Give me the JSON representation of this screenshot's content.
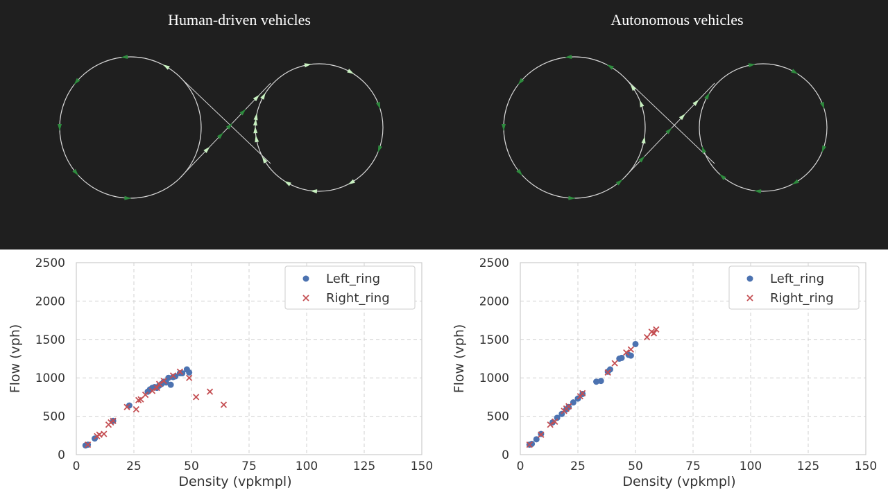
{
  "simulations": [
    {
      "title": "Human-driven vehicles"
    },
    {
      "title": "Autonomous vehicles"
    }
  ],
  "colors": {
    "background_dark": "#1f1f1f",
    "track": "#d9d9d9",
    "vehicle_dark": "#2e8b3e",
    "vehicle_light": "#c8f0c0",
    "left_ring_marker": "#4c72b0",
    "right_ring_marker": "#c44e52",
    "grid": "#d0d0d0"
  },
  "chart_data": [
    {
      "type": "scatter",
      "xlabel": "Density (vpkmpl)",
      "ylabel": "Flow (vph)",
      "xlim": [
        0,
        150
      ],
      "ylim": [
        0,
        2500
      ],
      "xticks": [
        0,
        25,
        50,
        75,
        100,
        125,
        150
      ],
      "yticks": [
        0,
        500,
        1000,
        1500,
        2000,
        2500
      ],
      "grid": true,
      "legend_position": "top-right",
      "series": [
        {
          "name": "Left_ring",
          "marker": "circle",
          "color": "#4c72b0",
          "x": [
            4,
            5,
            8,
            16,
            23,
            31,
            32,
            33,
            34,
            35,
            36,
            37,
            38,
            39,
            40,
            41,
            42,
            43,
            45,
            46,
            48,
            49
          ],
          "y": [
            120,
            130,
            210,
            440,
            640,
            820,
            850,
            870,
            880,
            870,
            900,
            920,
            950,
            940,
            1000,
            910,
            1010,
            1020,
            1060,
            1060,
            1110,
            1070
          ]
        },
        {
          "name": "Right_ring",
          "marker": "x",
          "color": "#c44e52",
          "x": [
            5,
            9,
            10,
            12,
            14,
            15,
            16,
            22,
            26,
            27,
            28,
            30,
            33,
            35,
            36,
            38,
            42,
            45,
            49,
            52,
            58,
            64
          ],
          "y": [
            130,
            240,
            260,
            270,
            390,
            420,
            440,
            620,
            590,
            710,
            720,
            780,
            830,
            870,
            920,
            960,
            1030,
            1080,
            1000,
            750,
            820,
            650
          ]
        }
      ]
    },
    {
      "type": "scatter",
      "xlabel": "Density (vpkmpl)",
      "ylabel": "Flow (vph)",
      "xlim": [
        0,
        150
      ],
      "ylim": [
        0,
        2500
      ],
      "xticks": [
        0,
        25,
        50,
        75,
        100,
        125,
        150
      ],
      "yticks": [
        0,
        500,
        1000,
        1500,
        2000,
        2500
      ],
      "grid": true,
      "legend_position": "top-right",
      "series": [
        {
          "name": "Left_ring",
          "marker": "circle",
          "color": "#4c72b0",
          "x": [
            4,
            5,
            7,
            9,
            14,
            16,
            18,
            20,
            21,
            23,
            25,
            27,
            33,
            35,
            38,
            39,
            43,
            44,
            47,
            48,
            50
          ],
          "y": [
            130,
            140,
            200,
            270,
            420,
            480,
            530,
            590,
            620,
            680,
            730,
            790,
            950,
            960,
            1080,
            1110,
            1250,
            1260,
            1300,
            1290,
            1440
          ]
        },
        {
          "name": "Right_ring",
          "marker": "x",
          "color": "#c44e52",
          "x": [
            4,
            9,
            13,
            15,
            19,
            20,
            21,
            26,
            27,
            38,
            41,
            46,
            48,
            55,
            57,
            58,
            59
          ],
          "y": [
            130,
            260,
            390,
            430,
            570,
            600,
            630,
            760,
            800,
            1070,
            1190,
            1330,
            1370,
            1530,
            1600,
            1580,
            1630
          ]
        }
      ]
    }
  ]
}
